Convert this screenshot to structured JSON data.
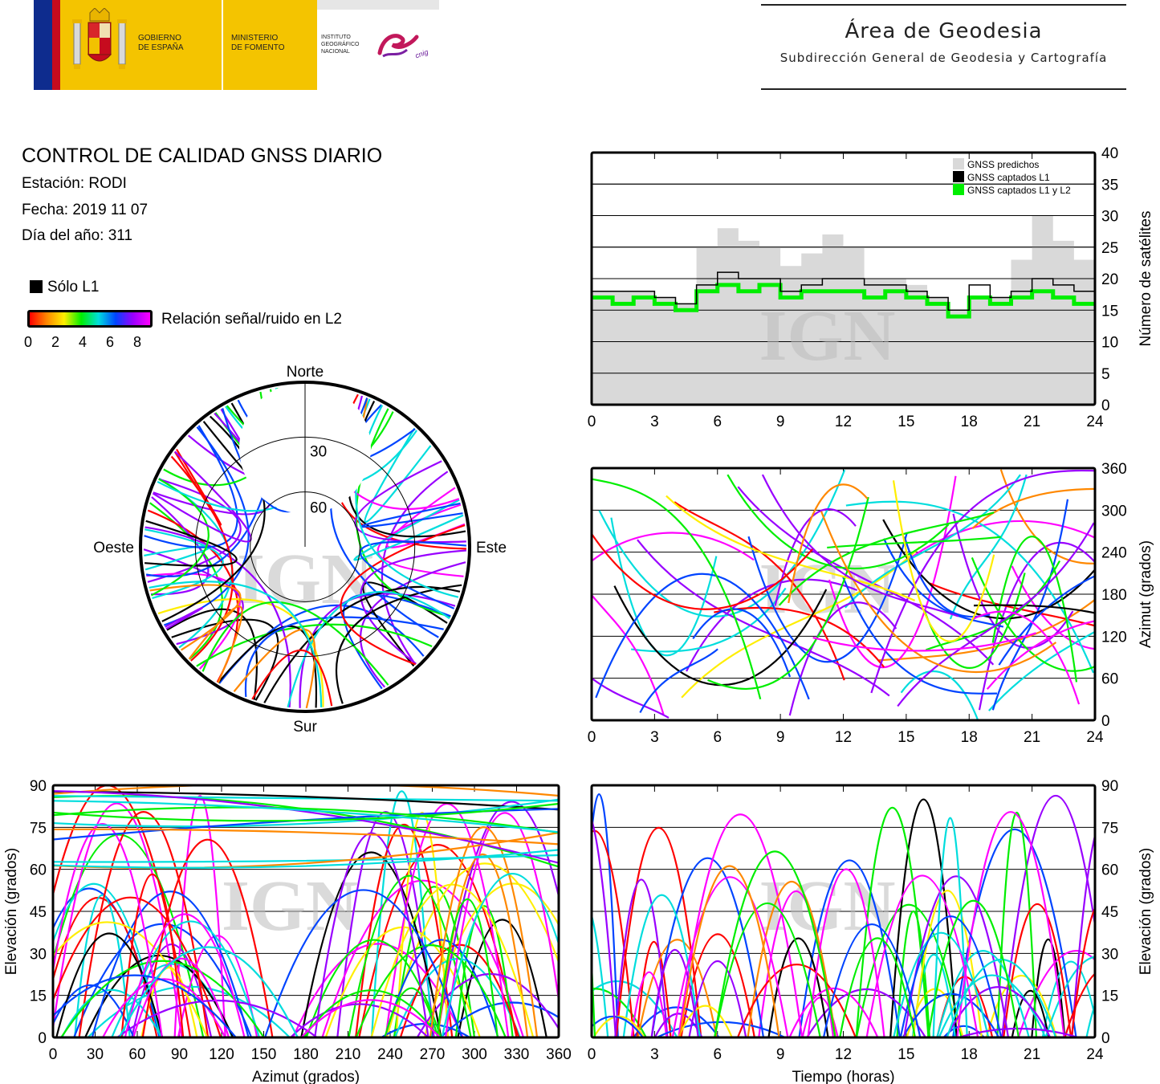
{
  "header": {
    "logo_left": {
      "gobierno": [
        "GOBIERNO",
        "DE ESPAÑA"
      ],
      "ministerio": [
        "MINISTERIO",
        "DE FOMENTO"
      ],
      "instituto": [
        "INSTITUTO",
        "GEOGRÁFICO",
        "NACIONAL"
      ],
      "cnig": "cnig"
    },
    "area_title": "Área de Geodesia",
    "area_subtitle": "Subdirección General de Geodesia y Cartografía"
  },
  "info": {
    "title": "CONTROL DE CALIDAD GNSS DIARIO",
    "station": "Estación: RODI",
    "date": "Fecha: 2019 11 07",
    "doy": "Día del año: 311"
  },
  "legend": {
    "l1_only": "Sólo L1",
    "snr_label": "Relación señal/ruido en L2",
    "snr_ticks": [
      "0",
      "2",
      "4",
      "6",
      "8"
    ],
    "colors": {
      "l1_only": "#000000",
      "snr_gradient": [
        "#ff0000",
        "#ff8800",
        "#ffee00",
        "#00ee00",
        "#00dddd",
        "#0044ff",
        "#9900ff",
        "#ff00ff"
      ]
    }
  },
  "watermark": "IGN",
  "chart_data": [
    {
      "id": "satellite-count",
      "type": "line",
      "title": "",
      "xlabel": "",
      "ylabel": "Número de satélites",
      "xlim": [
        0,
        24
      ],
      "ylim": [
        0,
        40
      ],
      "xticks": [
        "0",
        "3",
        "6",
        "9",
        "12",
        "15",
        "18",
        "21",
        "24"
      ],
      "yticks": [
        "0",
        "5",
        "10",
        "15",
        "20",
        "25",
        "30",
        "35",
        "40"
      ],
      "grid": true,
      "legend_position": "top-right",
      "colors": {
        "predicted": "#d9d9d9",
        "l1": "#000000",
        "l1l2": "#00ee00"
      },
      "x": [
        0,
        1,
        2,
        3,
        4,
        5,
        6,
        7,
        8,
        9,
        10,
        11,
        12,
        13,
        14,
        15,
        16,
        17,
        18,
        19,
        20,
        21,
        22,
        23,
        24
      ],
      "series": [
        {
          "name": "GNSS predichos",
          "values": [
            18,
            18,
            18,
            17,
            16,
            25,
            28,
            26,
            25,
            22,
            24,
            27,
            25,
            20,
            20,
            19,
            17,
            15,
            17,
            17,
            23,
            30,
            26,
            23,
            21
          ]
        },
        {
          "name": "GNSS captados L1",
          "values": [
            18,
            18,
            18,
            17,
            16,
            19,
            21,
            20,
            20,
            18,
            19,
            20,
            20,
            19,
            19,
            18,
            17,
            15,
            19,
            17,
            18,
            20,
            19,
            18,
            18
          ]
        },
        {
          "name": "GNSS captados L1 y L2",
          "values": [
            17,
            16,
            17,
            16,
            15,
            18,
            19,
            18,
            19,
            17,
            18,
            18,
            18,
            17,
            18,
            17,
            16,
            14,
            17,
            16,
            17,
            18,
            17,
            16,
            16
          ]
        }
      ]
    },
    {
      "id": "sky-plot",
      "type": "scatter",
      "title": "",
      "labels": {
        "north": "Norte",
        "south": "Sur",
        "east": "Este",
        "west": "Oeste"
      },
      "elevation_rings": [
        "30",
        "60"
      ],
      "gap": "north-cap"
    },
    {
      "id": "azimuth-vs-time",
      "type": "scatter",
      "xlabel": "",
      "ylabel": "Azimut (grados)",
      "xlim": [
        0,
        24
      ],
      "ylim": [
        0,
        360
      ],
      "xticks": [
        "0",
        "3",
        "6",
        "9",
        "12",
        "15",
        "18",
        "21",
        "24"
      ],
      "yticks": [
        "0",
        "60",
        "120",
        "180",
        "240",
        "300",
        "360"
      ],
      "grid": true
    },
    {
      "id": "elevation-vs-azimuth",
      "type": "scatter",
      "xlabel": "Azimut (grados)",
      "ylabel": "Elevación (grados)",
      "xlim": [
        0,
        360
      ],
      "ylim": [
        0,
        90
      ],
      "xticks": [
        "0",
        "30",
        "60",
        "90",
        "120",
        "150",
        "180",
        "210",
        "240",
        "270",
        "300",
        "330",
        "360"
      ],
      "yticks": [
        "0",
        "15",
        "30",
        "45",
        "60",
        "75",
        "90"
      ],
      "grid": true
    },
    {
      "id": "elevation-vs-time",
      "type": "scatter",
      "xlabel": "Tiempo (horas)",
      "ylabel": "Elevación (grados)",
      "xlim": [
        0,
        24
      ],
      "ylim": [
        0,
        90
      ],
      "xticks": [
        "0",
        "3",
        "6",
        "9",
        "12",
        "15",
        "18",
        "21",
        "24"
      ],
      "yticks": [
        "0",
        "15",
        "30",
        "45",
        "60",
        "75",
        "90"
      ],
      "grid": true
    }
  ]
}
